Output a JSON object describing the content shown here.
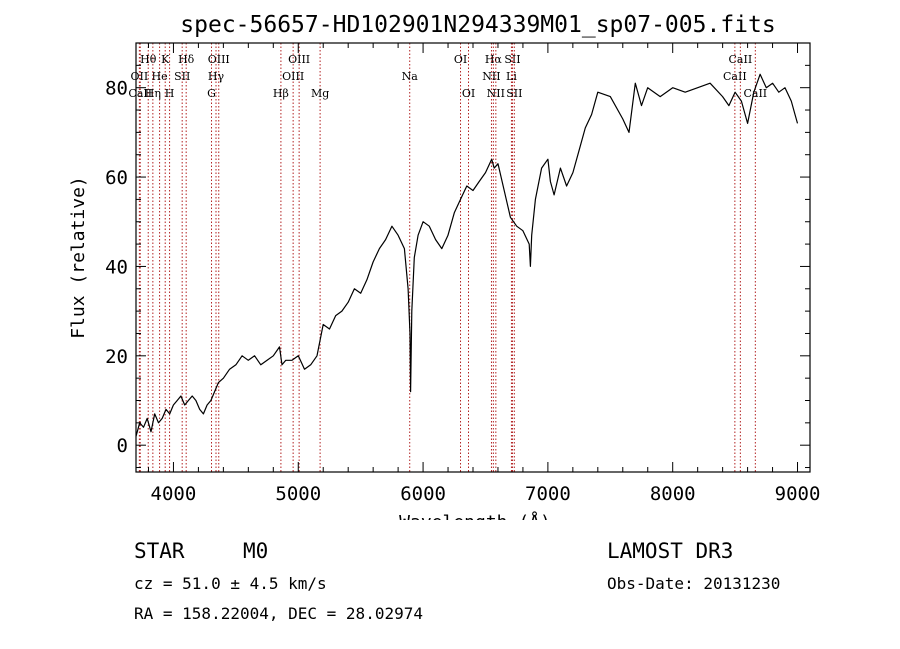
{
  "chart_data": {
    "type": "line",
    "title": "spec-56657-HD102901N294339M01_sp07-005.fits",
    "xlabel": "Wavelength (Å)",
    "ylabel": "Flux (relative)",
    "xlim": [
      3700,
      9100
    ],
    "ylim": [
      -6,
      90
    ],
    "x_ticks": [
      4000,
      5000,
      6000,
      7000,
      8000,
      9000
    ],
    "y_ticks": [
      0,
      20,
      40,
      60,
      80
    ],
    "series": [
      {
        "name": "spectrum",
        "x": [
          3700,
          3730,
          3760,
          3790,
          3820,
          3850,
          3880,
          3910,
          3940,
          3970,
          4000,
          4030,
          4060,
          4090,
          4120,
          4150,
          4180,
          4210,
          4240,
          4270,
          4300,
          4330,
          4360,
          4400,
          4450,
          4500,
          4550,
          4600,
          4650,
          4700,
          4750,
          4800,
          4850,
          4870,
          4900,
          4950,
          5000,
          5050,
          5100,
          5150,
          5200,
          5250,
          5300,
          5350,
          5400,
          5450,
          5500,
          5550,
          5600,
          5650,
          5700,
          5750,
          5800,
          5850,
          5880,
          5895,
          5900,
          5910,
          5930,
          5960,
          6000,
          6050,
          6100,
          6150,
          6200,
          6250,
          6300,
          6350,
          6400,
          6450,
          6500,
          6550,
          6570,
          6600,
          6650,
          6700,
          6750,
          6800,
          6850,
          6860,
          6870,
          6900,
          6950,
          7000,
          7020,
          7050,
          7100,
          7150,
          7200,
          7250,
          7300,
          7350,
          7400,
          7500,
          7600,
          7650,
          7700,
          7750,
          7800,
          7900,
          8000,
          8100,
          8200,
          8300,
          8400,
          8450,
          8500,
          8550,
          8600,
          8650,
          8700,
          8750,
          8800,
          8850,
          8900,
          8950,
          8980,
          9000
        ],
        "values": [
          2,
          5,
          4,
          6,
          3,
          7,
          5,
          6,
          8,
          7,
          9,
          10,
          11,
          9,
          10,
          11,
          10,
          8,
          7,
          9,
          10,
          12,
          14,
          15,
          17,
          18,
          20,
          19,
          20,
          18,
          19,
          20,
          22,
          18,
          19,
          19,
          20,
          17,
          18,
          20,
          27,
          26,
          29,
          30,
          32,
          35,
          34,
          37,
          41,
          44,
          46,
          49,
          47,
          44,
          35,
          25,
          12,
          30,
          42,
          47,
          50,
          49,
          46,
          44,
          47,
          52,
          55,
          58,
          57,
          59,
          61,
          64,
          62,
          63,
          57,
          51,
          49,
          48,
          45,
          40,
          47,
          55,
          62,
          64,
          59,
          56,
          62,
          58,
          61,
          66,
          71,
          74,
          79,
          78,
          73,
          70,
          81,
          76,
          80,
          78,
          80,
          79,
          80,
          81,
          78,
          76,
          79,
          77,
          72,
          79,
          83,
          80,
          81,
          79,
          80,
          77,
          74,
          72
        ]
      }
    ],
    "line_markers": [
      {
        "label": "Hθ",
        "x": 3798,
        "row": 1
      },
      {
        "label": "OII",
        "x": 3727,
        "row": 2
      },
      {
        "label": "CaII",
        "x": 3734,
        "row": 3
      },
      {
        "label": "K",
        "x": 3934,
        "row": 1
      },
      {
        "label": "He",
        "x": 3889,
        "row": 2
      },
      {
        "label": "Hη",
        "x": 3835,
        "row": 3
      },
      {
        "label": "H",
        "x": 3969,
        "row": 3
      },
      {
        "label": "SII",
        "x": 4070,
        "row": 2
      },
      {
        "label": "Hδ",
        "x": 4102,
        "row": 1
      },
      {
        "label": "OIII",
        "x": 4363,
        "row": 1
      },
      {
        "label": "Hγ",
        "x": 4341,
        "row": 2
      },
      {
        "label": "G",
        "x": 4305,
        "row": 3
      },
      {
        "label": "Hβ",
        "x": 4861,
        "row": 3
      },
      {
        "label": "OIII",
        "x": 5007,
        "row": 1
      },
      {
        "label": "OIII",
        "x": 4959,
        "row": 2
      },
      {
        "label": "Mg",
        "x": 5175,
        "row": 3
      },
      {
        "label": "Na",
        "x": 5893,
        "row": 2
      },
      {
        "label": "OI",
        "x": 6300,
        "row": 1
      },
      {
        "label": "OI",
        "x": 6364,
        "row": 3
      },
      {
        "label": "Hα",
        "x": 6563,
        "row": 1
      },
      {
        "label": "NII",
        "x": 6548,
        "row": 2
      },
      {
        "label": "NII",
        "x": 6583,
        "row": 3
      },
      {
        "label": "SII",
        "x": 6716,
        "row": 1
      },
      {
        "label": "Li",
        "x": 6708,
        "row": 2
      },
      {
        "label": "SII",
        "x": 6731,
        "row": 3
      },
      {
        "label": "CaII",
        "x": 8542,
        "row": 1
      },
      {
        "label": "CaII",
        "x": 8498,
        "row": 2
      },
      {
        "label": "CaII",
        "x": 8662,
        "row": 3
      }
    ]
  },
  "info": {
    "object_class": "STAR",
    "subclass": "M0",
    "survey": "LAMOST DR3",
    "redshift": "cz = 51.0 ± 4.5 km/s",
    "obs_date": "Obs-Date: 20131230",
    "coords": "RA = 158.22004, DEC =  28.02974"
  },
  "colors": {
    "axis": "#000000",
    "spectrum": "#000000",
    "marker_line": "#b22222"
  }
}
